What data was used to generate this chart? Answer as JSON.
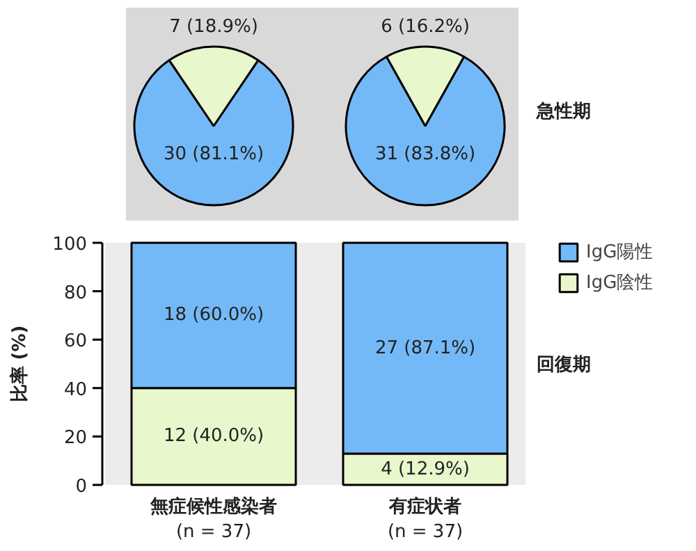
{
  "chart_data": [
    {
      "type": "pie",
      "categories": [
        "IgG陽性",
        "IgG陰性"
      ],
      "values": [
        30,
        7
      ],
      "colors": [
        "#74b9f7",
        "#e8f7cc"
      ],
      "value_labels": [
        "30 (81.1%)",
        "7 (18.9%)"
      ],
      "legend": "right"
    },
    {
      "type": "pie",
      "categories": [
        null,
        null
      ],
      "values": [
        31,
        6
      ],
      "colors": [
        "#74b9f7",
        "#e8f7cc"
      ],
      "value_labels": [
        "31 (83.8%)",
        "6 (16.2%)"
      ],
      "annotations": [
        "急性期"
      ]
    },
    {
      "type": "bar",
      "stacked": true,
      "categories": [
        "無症候性感染者\n(n = 37)",
        "有症状者\n(n = 37)"
      ],
      "ylabel": "比率 (%)",
      "ylim": [
        0,
        100
      ],
      "yticks": [
        0,
        20,
        40,
        60,
        80,
        100
      ],
      "annotations": [
        "回復期"
      ],
      "series": [
        {
          "color": "#e8f7cc",
          "values": [
            40,
            12.9
          ],
          "value_labels": [
            "12 (40.0%)",
            "4 (12.9%)"
          ]
        },
        {
          "color": "#74b9f7",
          "values": [
            60,
            87.1
          ],
          "value_labels": [
            "18 (60.0%)",
            "27 (87.1%)"
          ]
        }
      ]
    }
  ]
}
